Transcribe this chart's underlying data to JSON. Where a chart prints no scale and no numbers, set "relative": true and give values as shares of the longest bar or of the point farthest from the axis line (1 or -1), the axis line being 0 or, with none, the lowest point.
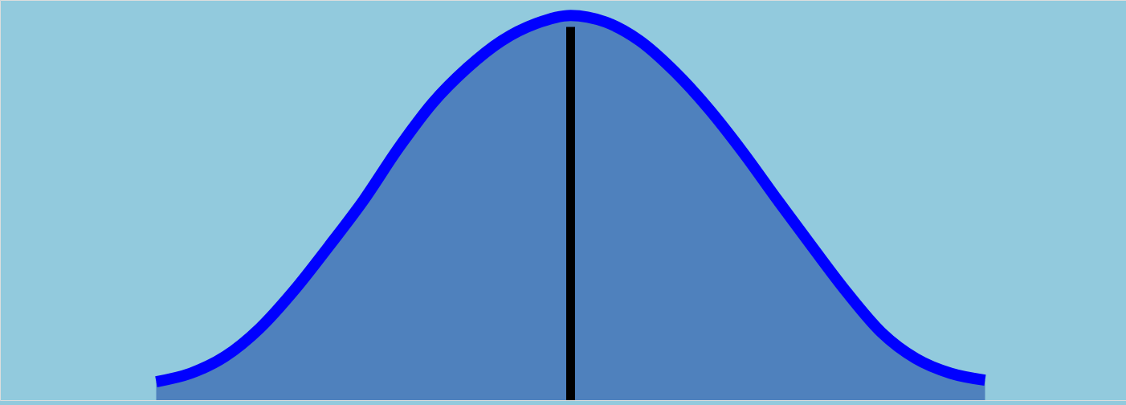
{
  "chart_data": {
    "type": "area",
    "relative": true,
    "categories": [
      null,
      null,
      null,
      null,
      null,
      null,
      null,
      null,
      null,
      null,
      null,
      null,
      null,
      null,
      null,
      null,
      null,
      null,
      null,
      null,
      null,
      null,
      null,
      null,
      null
    ],
    "series": [
      {
        "color": "#0000ff",
        "values": [
          0.048,
          0.07,
          0.114,
          0.187,
          0.286,
          0.4,
          0.519,
          0.653,
          0.772,
          0.863,
          0.934,
          0.979,
          1.0,
          0.983,
          0.934,
          0.855,
          0.757,
          0.643,
          0.519,
          0.398,
          0.28,
          0.176,
          0.108,
          0.07,
          0.052
        ]
      }
    ]
  }
}
